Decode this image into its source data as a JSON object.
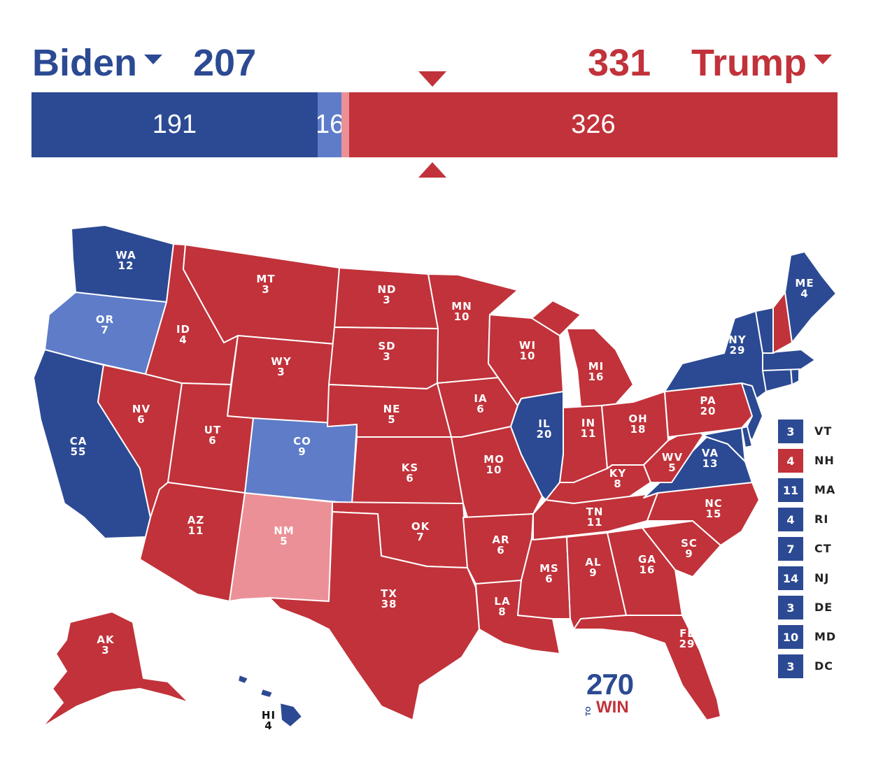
{
  "header": {
    "biden_label": "Biden",
    "biden_total": "207",
    "trump_total": "331",
    "trump_label": "Trump"
  },
  "bar": {
    "segments": [
      {
        "label": "191",
        "value": 191,
        "color": "#2c4a93"
      },
      {
        "label": "16",
        "value": 16,
        "color": "#5e7cc8"
      },
      {
        "label": "",
        "value": 5,
        "color": "#ec9097"
      },
      {
        "label": "326",
        "value": 326,
        "color": "#c1323a"
      }
    ],
    "total": 538
  },
  "colors": {
    "safe_dem": "#2c4a93",
    "lean_dem": "#5e7cc8",
    "lean_rep": "#ec9097",
    "safe_rep": "#c1323a"
  },
  "states": {
    "WA": {
      "abbr": "WA",
      "ev": "12"
    },
    "OR": {
      "abbr": "OR",
      "ev": "7"
    },
    "CA": {
      "abbr": "CA",
      "ev": "55"
    },
    "ID": {
      "abbr": "ID",
      "ev": "4"
    },
    "NV": {
      "abbr": "NV",
      "ev": "6"
    },
    "MT": {
      "abbr": "MT",
      "ev": "3"
    },
    "WY": {
      "abbr": "WY",
      "ev": "3"
    },
    "UT": {
      "abbr": "UT",
      "ev": "6"
    },
    "AZ": {
      "abbr": "AZ",
      "ev": "11"
    },
    "CO": {
      "abbr": "CO",
      "ev": "9"
    },
    "NM": {
      "abbr": "NM",
      "ev": "5"
    },
    "ND": {
      "abbr": "ND",
      "ev": "3"
    },
    "SD": {
      "abbr": "SD",
      "ev": "3"
    },
    "NE": {
      "abbr": "NE",
      "ev": "5"
    },
    "KS": {
      "abbr": "KS",
      "ev": "6"
    },
    "OK": {
      "abbr": "OK",
      "ev": "7"
    },
    "TX": {
      "abbr": "TX",
      "ev": "38"
    },
    "MN": {
      "abbr": "MN",
      "ev": "10"
    },
    "IA": {
      "abbr": "IA",
      "ev": "6"
    },
    "MO": {
      "abbr": "MO",
      "ev": "10"
    },
    "AR": {
      "abbr": "AR",
      "ev": "6"
    },
    "LA": {
      "abbr": "LA",
      "ev": "8"
    },
    "WI": {
      "abbr": "WI",
      "ev": "10"
    },
    "IL": {
      "abbr": "IL",
      "ev": "20"
    },
    "MI": {
      "abbr": "MI",
      "ev": "16"
    },
    "IN": {
      "abbr": "IN",
      "ev": "11"
    },
    "OH": {
      "abbr": "OH",
      "ev": "18"
    },
    "KY": {
      "abbr": "KY",
      "ev": "8"
    },
    "TN": {
      "abbr": "TN",
      "ev": "11"
    },
    "MS": {
      "abbr": "MS",
      "ev": "6"
    },
    "AL": {
      "abbr": "AL",
      "ev": "9"
    },
    "GA": {
      "abbr": "GA",
      "ev": "16"
    },
    "FL": {
      "abbr": "FL",
      "ev": "29"
    },
    "SC": {
      "abbr": "SC",
      "ev": "9"
    },
    "NC": {
      "abbr": "NC",
      "ev": "15"
    },
    "VA": {
      "abbr": "VA",
      "ev": "13"
    },
    "WV": {
      "abbr": "WV",
      "ev": "5"
    },
    "PA": {
      "abbr": "PA",
      "ev": "20"
    },
    "NY": {
      "abbr": "NY",
      "ev": "29"
    },
    "ME": {
      "abbr": "ME",
      "ev": "4"
    },
    "AK": {
      "abbr": "AK",
      "ev": "3"
    },
    "HI": {
      "abbr": "HI",
      "ev": "4"
    }
  },
  "legend": [
    {
      "ev": "3",
      "abbr": "VT",
      "party": "dem"
    },
    {
      "ev": "4",
      "abbr": "NH",
      "party": "rep"
    },
    {
      "ev": "11",
      "abbr": "MA",
      "party": "dem"
    },
    {
      "ev": "4",
      "abbr": "RI",
      "party": "dem"
    },
    {
      "ev": "7",
      "abbr": "CT",
      "party": "dem"
    },
    {
      "ev": "14",
      "abbr": "NJ",
      "party": "dem"
    },
    {
      "ev": "3",
      "abbr": "DE",
      "party": "dem"
    },
    {
      "ev": "10",
      "abbr": "MD",
      "party": "dem"
    },
    {
      "ev": "3",
      "abbr": "DC",
      "party": "dem"
    }
  ],
  "logo": {
    "number": "270",
    "to": "TO",
    "win": "WIN"
  }
}
